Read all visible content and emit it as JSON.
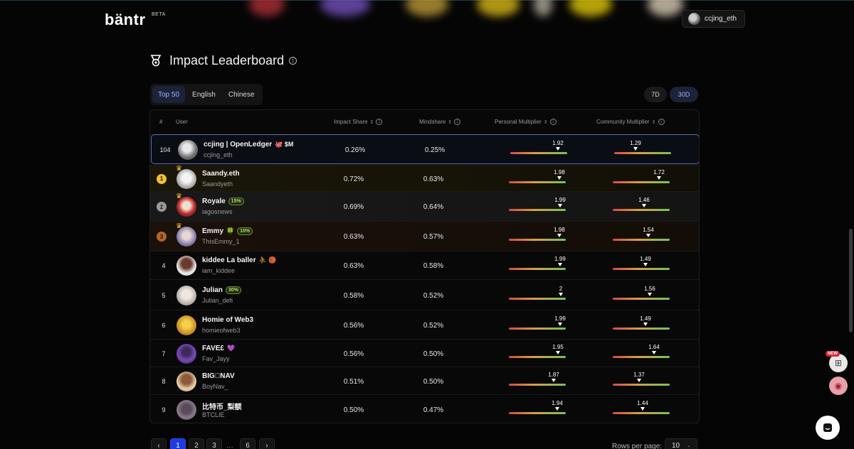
{
  "header": {
    "logo": "bäntr",
    "beta": "BETA",
    "user": "ccjing_eth"
  },
  "page": {
    "title": "Impact Leaderboard"
  },
  "tabs": [
    {
      "label": "Top 50",
      "active": true
    },
    {
      "label": "English",
      "active": false
    },
    {
      "label": "Chinese",
      "active": false
    }
  ],
  "periods": [
    {
      "label": "7D",
      "active": false
    },
    {
      "label": "30D",
      "active": true
    }
  ],
  "columns": {
    "rank": "#",
    "user": "User",
    "impact": "Impact Share",
    "mindshare": "Mindshare",
    "personal": "Personal Multiplier",
    "community": "Community Multiplier"
  },
  "rows": [
    {
      "rank": "104",
      "name": "ccjing | OpenLedger",
      "extra": "🐙 $M",
      "handle": "ccjing_eth",
      "impact": "0.26%",
      "mindshare": "0.25%",
      "personal": "1.92",
      "personal_level": 0.92,
      "community": "1.29",
      "community_level": 0.29
    },
    {
      "rank": "1",
      "name": "Saandy.eth",
      "extra": "",
      "handle": "Saandyeth",
      "impact": "0.72%",
      "mindshare": "0.63%",
      "personal": "1.98",
      "personal_level": 0.98,
      "community": "1.72",
      "community_level": 0.72
    },
    {
      "rank": "2",
      "name": "Royale",
      "badge": "15%",
      "handle": "iagosnews",
      "impact": "0.69%",
      "mindshare": "0.64%",
      "personal": "1.99",
      "personal_level": 0.99,
      "community": "1.46",
      "community_level": 0.46
    },
    {
      "rank": "3",
      "name": "Emmy",
      "extra": "🍀",
      "badge": "10%",
      "handle": "ThisEmmy_1",
      "impact": "0.63%",
      "mindshare": "0.57%",
      "personal": "1.98",
      "personal_level": 0.98,
      "community": "1.54",
      "community_level": 0.54
    },
    {
      "rank": "4",
      "name": "kiddee La baller",
      "extra": "⛹ 🏀",
      "handle": "iam_kiddee",
      "impact": "0.63%",
      "mindshare": "0.58%",
      "personal": "1.99",
      "personal_level": 0.99,
      "community": "1.49",
      "community_level": 0.49
    },
    {
      "rank": "5",
      "name": "Julian",
      "badge": "30%",
      "handle": "Julian_defi",
      "impact": "0.58%",
      "mindshare": "0.52%",
      "personal": "2",
      "personal_level": 1.0,
      "community": "1.56",
      "community_level": 0.56
    },
    {
      "rank": "6",
      "name": "Homie of Web3",
      "extra": "",
      "handle": "homieofweb3",
      "impact": "0.56%",
      "mindshare": "0.52%",
      "personal": "1.99",
      "personal_level": 0.99,
      "community": "1.49",
      "community_level": 0.49
    },
    {
      "rank": "7",
      "name": "FAVE£",
      "extra": "💜",
      "handle": "Fav_Jayy",
      "impact": "0.56%",
      "mindshare": "0.50%",
      "personal": "1.95",
      "personal_level": 0.95,
      "community": "1.64",
      "community_level": 0.64
    },
    {
      "rank": "8",
      "name": "BIG⃣NAV",
      "extra": "",
      "handle": "BoyNav_",
      "impact": "0.51%",
      "mindshare": "0.50%",
      "personal": "1.87",
      "personal_level": 0.87,
      "community": "1.37",
      "community_level": 0.37
    },
    {
      "rank": "9",
      "name": "比特币_梨额",
      "extra": "",
      "handle": "BTCLIE",
      "impact": "0.50%",
      "mindshare": "0.47%",
      "personal": "1.94",
      "personal_level": 0.94,
      "community": "1.44",
      "community_level": 0.44
    }
  ],
  "pagination": {
    "prev": "‹",
    "pages": [
      "1",
      "2",
      "3",
      "6"
    ],
    "ellipsis": "…",
    "next": "›",
    "rows_per_page_label": "Rows per page:",
    "rows_per_page": "10"
  },
  "side": {
    "new_tag": "NEW"
  }
}
